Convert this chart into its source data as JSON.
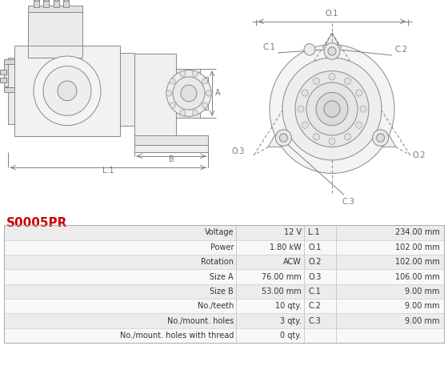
{
  "title_code": "S0005PR",
  "title_color": "#cc0000",
  "bg_color": "#ffffff",
  "table": {
    "rows": [
      [
        "Voltage",
        "12 V",
        "L.1",
        "234.00 mm"
      ],
      [
        "Power",
        "1.80 kW",
        "O.1",
        "102.00 mm"
      ],
      [
        "Rotation",
        "ACW",
        "O.2",
        "102.00 mm"
      ],
      [
        "Size A",
        "76.00 mm",
        "O.3",
        "106.00 mm"
      ],
      [
        "Size B",
        "53.00 mm",
        "C.1",
        "9.00 mm"
      ],
      [
        "No./teeth",
        "10 qty.",
        "C.2",
        "9.00 mm"
      ],
      [
        "No./mount. holes",
        "3 qty.",
        "C.3",
        "9.00 mm"
      ],
      [
        "No./mount. holes with thread",
        "0 qty.",
        "",
        ""
      ]
    ],
    "row_colors": [
      "#ececec",
      "#f8f8f8",
      "#ececec",
      "#f8f8f8",
      "#ececec",
      "#f8f8f8",
      "#ececec",
      "#f8f8f8"
    ],
    "font_size": 7.0
  },
  "dim_color": "#777777",
  "line_color": "#888888",
  "lw": 0.7,
  "fig_w": 5.6,
  "fig_h": 4.62,
  "dpi": 100
}
